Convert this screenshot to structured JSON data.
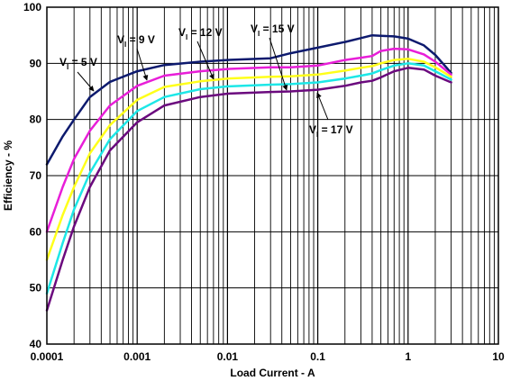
{
  "chart_data": {
    "type": "line",
    "xlabel": "Load Current - A",
    "ylabel": "Efficiency - %",
    "x_scale": "log",
    "xlim": [
      0.0001,
      10
    ],
    "ylim": [
      40,
      100
    ],
    "x_ticks": [
      "0.0001",
      "0.001",
      "0.01",
      "0.1",
      "1",
      "10"
    ],
    "y_ticks": [
      "40",
      "50",
      "60",
      "70",
      "80",
      "90",
      "100"
    ],
    "grid": true,
    "series": [
      {
        "name": "VI = 5 V",
        "label_main": "V",
        "label_sub": "I",
        "label_rest": " = 5 V",
        "color": "#0d1a6e",
        "x": [
          0.0001,
          0.00015,
          0.0002,
          0.0003,
          0.0005,
          0.001,
          0.002,
          0.005,
          0.01,
          0.03,
          0.05,
          0.1,
          0.2,
          0.3,
          0.4,
          0.5,
          0.7,
          1,
          1.5,
          2,
          3
        ],
        "y": [
          72,
          77,
          80,
          84,
          86.7,
          88.6,
          89.7,
          90.3,
          90.6,
          90.9,
          91.8,
          92.8,
          93.8,
          94.5,
          95,
          94.9,
          94.8,
          94.4,
          93.2,
          91.5,
          88.3
        ]
      },
      {
        "name": "VI = 9 V",
        "label_main": "V",
        "label_sub": "I",
        "label_rest": " = 9 V",
        "color": "#e81ed8",
        "x": [
          0.0001,
          0.00015,
          0.0002,
          0.0003,
          0.0005,
          0.001,
          0.002,
          0.005,
          0.01,
          0.03,
          0.05,
          0.1,
          0.2,
          0.3,
          0.4,
          0.5,
          0.7,
          1,
          1.5,
          2,
          3
        ],
        "y": [
          60,
          68,
          73,
          78,
          82.5,
          86,
          87.8,
          88.6,
          89,
          89.3,
          89.3,
          89.6,
          90.6,
          91,
          91.3,
          92.2,
          92.6,
          92.5,
          91.6,
          90.3,
          88
        ]
      },
      {
        "name": "VI = 12 V",
        "label_main": "V",
        "label_sub": "I",
        "label_rest": " = 12 V",
        "color": "#ffff1a",
        "x": [
          0.0001,
          0.00015,
          0.0002,
          0.0003,
          0.0005,
          0.001,
          0.002,
          0.005,
          0.01,
          0.03,
          0.05,
          0.1,
          0.2,
          0.3,
          0.4,
          0.5,
          0.7,
          1,
          1.5,
          2,
          3
        ],
        "y": [
          55,
          63,
          68,
          74,
          79,
          83.5,
          85.8,
          86.8,
          87.3,
          87.6,
          87.7,
          88,
          88.7,
          89.2,
          89.5,
          90,
          90.6,
          90.8,
          90.3,
          89.3,
          87.6
        ]
      },
      {
        "name": "VI = 15 V",
        "label_main": "V",
        "label_sub": "I",
        "label_rest": " = 15 V",
        "color": "#1de7e7",
        "x": [
          0.0001,
          0.00015,
          0.0002,
          0.0003,
          0.0005,
          0.001,
          0.002,
          0.005,
          0.01,
          0.03,
          0.05,
          0.1,
          0.2,
          0.3,
          0.4,
          0.5,
          0.7,
          1,
          1.5,
          2,
          3
        ],
        "y": [
          49,
          58,
          64,
          70.5,
          76.5,
          81.5,
          84,
          85.4,
          85.9,
          86.2,
          86.3,
          86.6,
          87.3,
          87.8,
          88.2,
          88.8,
          89.6,
          90,
          89.6,
          88.6,
          87.1
        ]
      },
      {
        "name": "VI = 17 V",
        "label_main": "V",
        "label_sub": "I",
        "label_rest": " = 17 V",
        "color": "#6b0a7e",
        "x": [
          0.0001,
          0.00015,
          0.0002,
          0.0003,
          0.0005,
          0.001,
          0.002,
          0.005,
          0.01,
          0.03,
          0.05,
          0.1,
          0.2,
          0.3,
          0.4,
          0.5,
          0.7,
          1,
          1.5,
          2,
          3
        ],
        "y": [
          46,
          55,
          61,
          68,
          74.5,
          79.5,
          82.5,
          84,
          84.6,
          84.9,
          85,
          85.3,
          86,
          86.6,
          86.9,
          87.5,
          88.6,
          89.2,
          88.9,
          87.8,
          86.6
        ]
      }
    ]
  }
}
